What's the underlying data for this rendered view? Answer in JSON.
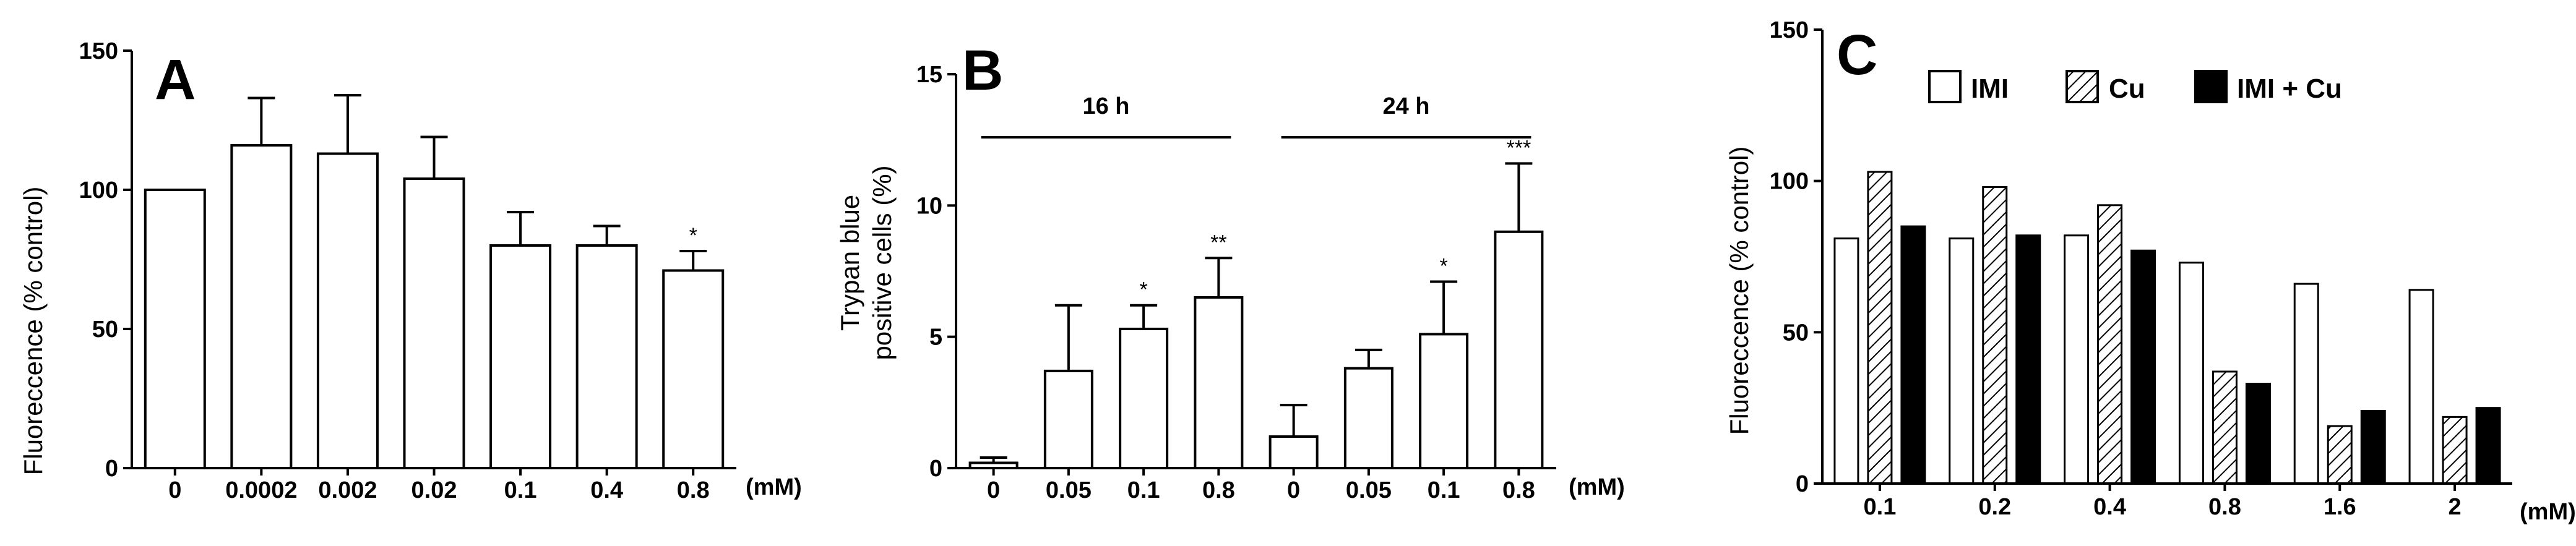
{
  "chart_data": [
    {
      "panel_label": "A",
      "type": "bar",
      "ylabel": "Fluoreccence (% control)",
      "xunit": "(mM)",
      "ylim": [
        0,
        150
      ],
      "yticks": [
        0,
        50,
        100,
        150
      ],
      "categories": [
        "0",
        "0.0002",
        "0.002",
        "0.02",
        "0.1",
        "0.4",
        "0.8"
      ],
      "values": [
        100,
        116,
        113,
        104,
        80,
        80,
        71
      ],
      "errors": [
        0,
        17,
        21,
        15,
        12,
        7,
        7
      ],
      "annotations": [
        "",
        "",
        "",
        "",
        "",
        "",
        "*"
      ]
    },
    {
      "panel_label": "B",
      "type": "bar",
      "ylabel_lines": [
        "Trypan blue",
        "positive cells (%)"
      ],
      "xunit": "(mM)",
      "ylim": [
        0,
        15
      ],
      "yticks": [
        0,
        5,
        10,
        15
      ],
      "groups": [
        {
          "label": "16 h",
          "categories": [
            "0",
            "0.05",
            "0.1",
            "0.8"
          ],
          "values": [
            0.2,
            3.7,
            5.3,
            6.5
          ],
          "errors": [
            0.2,
            2.5,
            0.9,
            1.5
          ],
          "annotations": [
            "",
            "",
            "*",
            "**"
          ]
        },
        {
          "label": "24 h",
          "categories": [
            "0",
            "0.05",
            "0.1",
            "0.8"
          ],
          "values": [
            1.2,
            3.8,
            5.1,
            9.0
          ],
          "errors": [
            1.2,
            0.7,
            2.0,
            2.6
          ],
          "annotations": [
            "",
            "",
            "*",
            "***"
          ]
        }
      ]
    },
    {
      "panel_label": "C",
      "type": "bar",
      "ylabel": "Fluoreccence (% control)",
      "xunit": "(mM)",
      "ylim": [
        0,
        150
      ],
      "yticks": [
        0,
        50,
        100,
        150
      ],
      "categories": [
        "0.1",
        "0.2",
        "0.4",
        "0.8",
        "1.6",
        "2"
      ],
      "legend_position": "top",
      "series": [
        {
          "name": "IMI",
          "fill": "white",
          "values": [
            81,
            81,
            82,
            73,
            66,
            64
          ]
        },
        {
          "name": "Cu",
          "fill": "hatched",
          "values": [
            103,
            98,
            92,
            37,
            19,
            22
          ]
        },
        {
          "name": "IMI + Cu",
          "fill": "black",
          "values": [
            85,
            82,
            77,
            33,
            24,
            25
          ]
        }
      ]
    }
  ]
}
